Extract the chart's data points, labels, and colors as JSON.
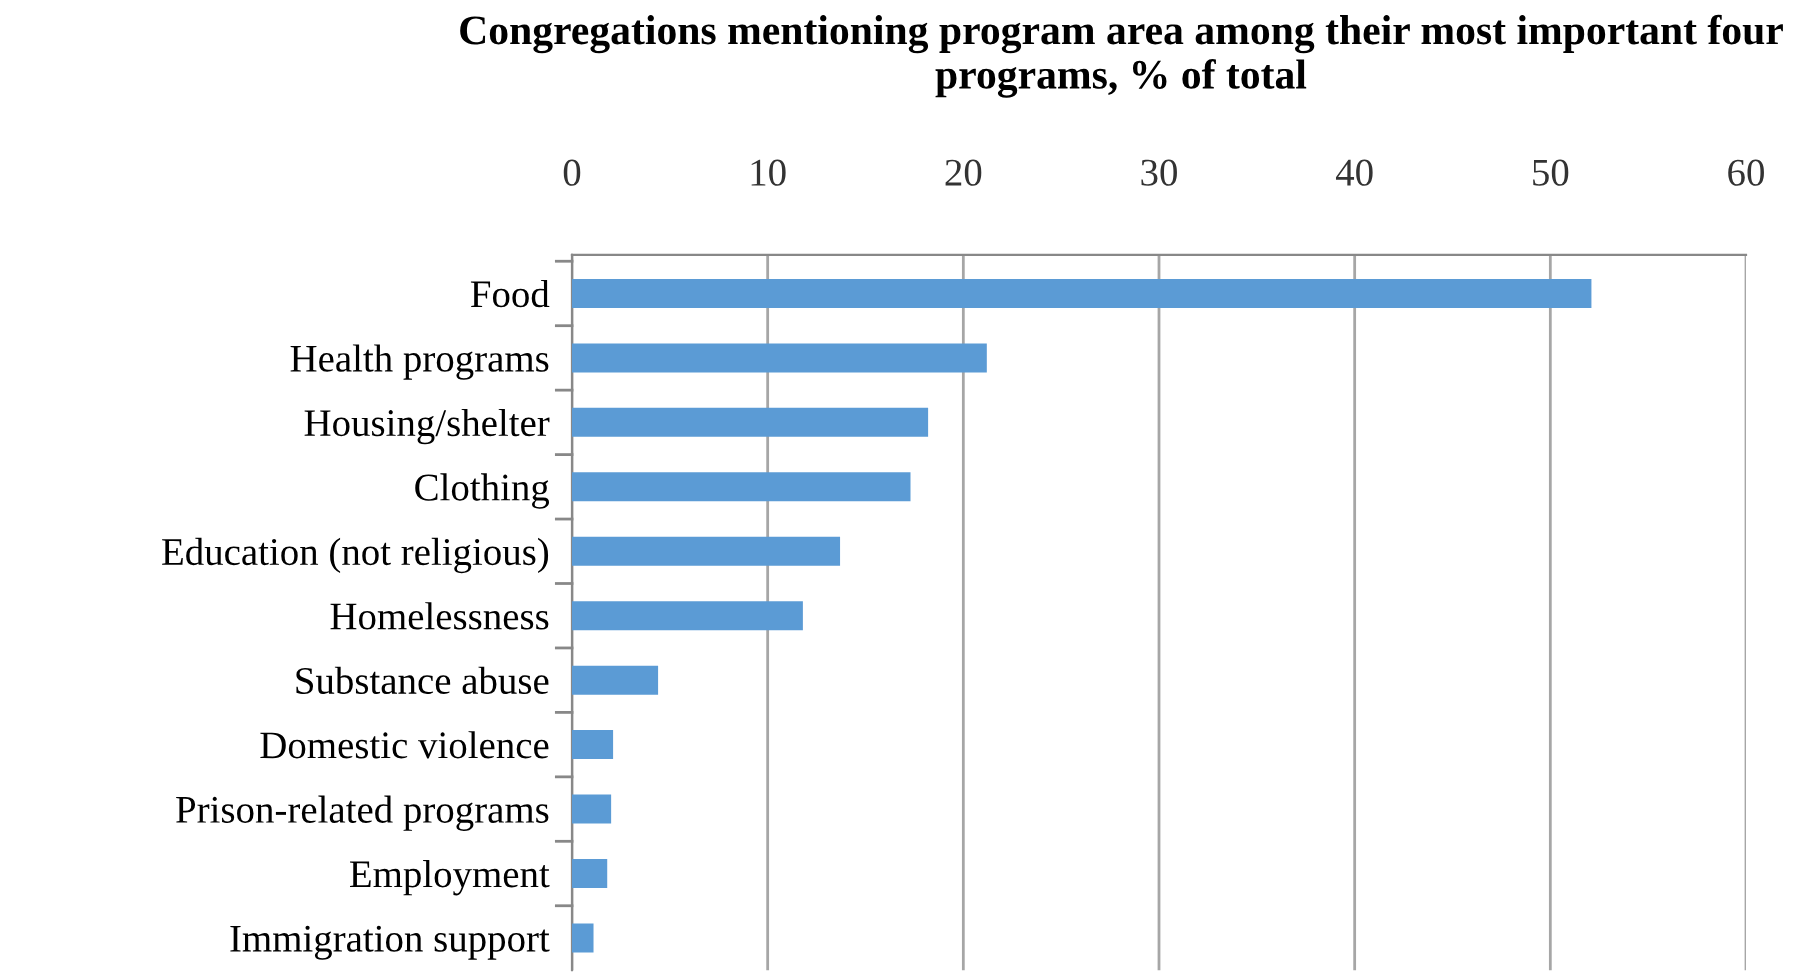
{
  "chart_data": {
    "type": "bar",
    "orientation": "horizontal",
    "title": "Congregations mentioning program area among their most important four programs, % of total",
    "categories": [
      "Food",
      "Health programs",
      "Housing/shelter",
      "Clothing",
      "Education (not religious)",
      "Homelessness",
      "Substance abuse",
      "Domestic violence",
      "Prison-related programs",
      "Employment",
      "Immigration support"
    ],
    "values": [
      52.1,
      21.2,
      18.2,
      17.3,
      13.7,
      11.8,
      4.4,
      2.1,
      2.0,
      1.8,
      1.1
    ],
    "color": "#5b9bd5",
    "xlim": [
      0,
      60
    ],
    "xticks": [
      0,
      10,
      20,
      30,
      40,
      50,
      60
    ],
    "grid": "x"
  }
}
